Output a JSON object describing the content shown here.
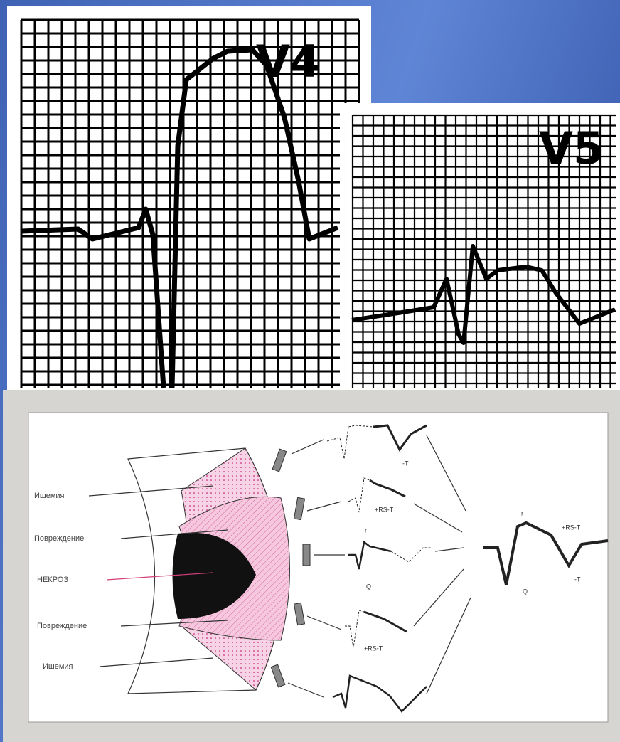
{
  "panels": [
    {
      "label": "V4"
    },
    {
      "label": "V5"
    }
  ],
  "diagram": {
    "zones": [
      "Ишемия",
      "Повреждение",
      "НЕКРОЗ",
      "Повреждение",
      "Ишемия"
    ],
    "waves": [
      {
        "labels": [
          "-T"
        ]
      },
      {
        "labels": [
          "+RS-T"
        ]
      },
      {
        "labels": [
          "r",
          "Q"
        ]
      },
      {
        "labels": [
          "+RS-T"
        ]
      }
    ],
    "result": {
      "labels": [
        "r",
        "+RS-T",
        "Q",
        "-T"
      ]
    }
  }
}
